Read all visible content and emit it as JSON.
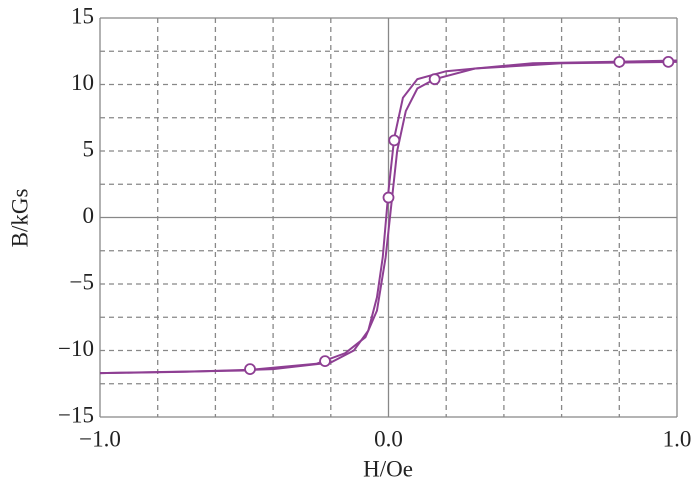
{
  "chart_data": {
    "type": "line",
    "xlabel": "H/Oe",
    "ylabel": "B/kGs",
    "xlim": [
      -1.0,
      1.0
    ],
    "ylim": [
      -15,
      15
    ],
    "xticks": [
      {
        "value": -1.0,
        "label": "−1.0"
      },
      {
        "value": 0,
        "label": "0.0"
      },
      {
        "value": 1.0,
        "label": "1.0"
      }
    ],
    "yticks": [
      {
        "value": -15,
        "label": "−15"
      },
      {
        "value": -10,
        "label": "−10"
      },
      {
        "value": -5,
        "label": "−5"
      },
      0,
      5,
      10,
      15
    ],
    "xgrid": [
      -0.8,
      -0.6,
      -0.4,
      -0.2,
      0.2,
      0.4,
      0.6,
      0.8
    ],
    "ygrid": [
      -12.5,
      -7.5,
      -2.5,
      2.5,
      7.5,
      12.5
    ],
    "grid": true,
    "series": [
      {
        "color": "#8e3f93",
        "marker": "none",
        "x": [
          1.0,
          0.5,
          0.2,
          0.1,
          0.05,
          0.02,
          0.0,
          -0.02,
          -0.04,
          -0.07,
          -0.12,
          -0.2,
          -0.4,
          -0.7,
          -1.0
        ],
        "values": [
          11.8,
          11.6,
          11.0,
          10.4,
          9.0,
          6.0,
          2.0,
          -3.0,
          -6.0,
          -8.5,
          -10.0,
          -10.9,
          -11.4,
          -11.6,
          -11.7
        ]
      },
      {
        "color": "#8e3f93",
        "marker": "none",
        "x": [
          -1.0,
          -0.5,
          -0.25,
          -0.15,
          -0.08,
          -0.04,
          -0.01,
          0.01,
          0.03,
          0.06,
          0.1,
          0.16,
          0.3,
          0.6,
          1.0
        ],
        "values": [
          -11.7,
          -11.5,
          -11.0,
          -10.2,
          -9.0,
          -7.0,
          -3.0,
          1.0,
          5.0,
          8.0,
          9.7,
          10.4,
          11.2,
          11.6,
          11.7
        ]
      },
      {
        "color": "#8e3f93",
        "marker": "open-circle",
        "x": [
          -0.48,
          -0.22,
          0.0,
          0.02,
          0.16,
          0.8,
          0.97
        ],
        "values": [
          -11.4,
          -10.8,
          1.5,
          5.8,
          10.4,
          11.7,
          11.7
        ]
      }
    ]
  }
}
